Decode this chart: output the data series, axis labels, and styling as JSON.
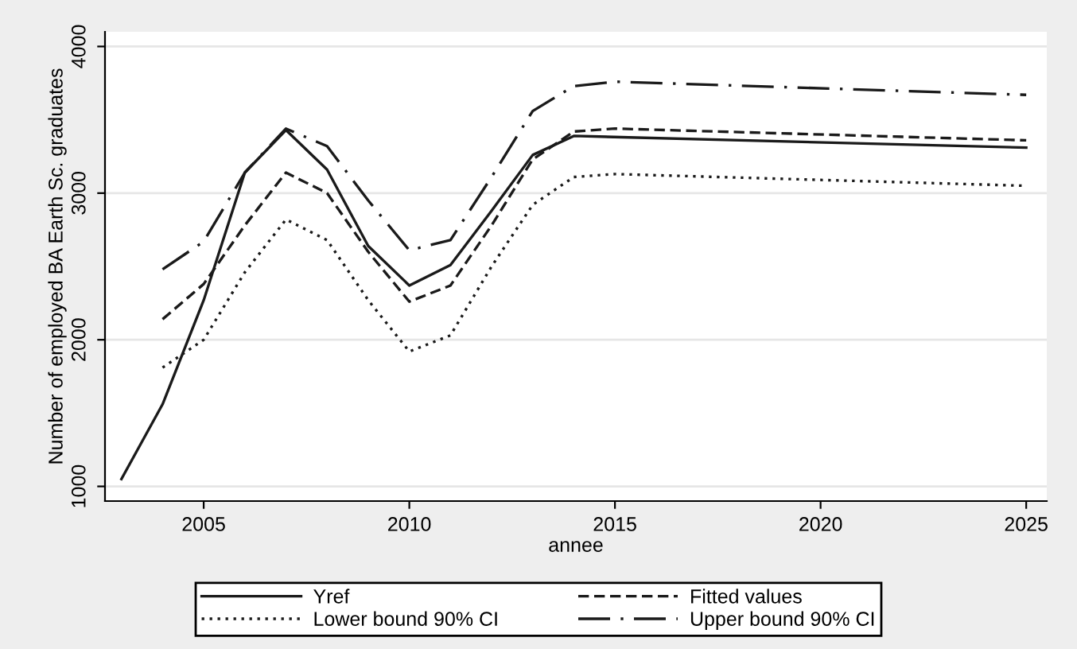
{
  "chart_data": {
    "type": "line",
    "xlabel": "annee",
    "ylabel": "Number of employed BA Earth Sc. graduates",
    "xlim": [
      2002.6,
      2025.5
    ],
    "ylim": [
      900,
      4100
    ],
    "xticks": [
      2005,
      2010,
      2015,
      2020,
      2025
    ],
    "yticks": [
      1000,
      2000,
      3000,
      4000
    ],
    "grid": "y",
    "legend": "bottom",
    "series": [
      {
        "name": "Yref",
        "color": "#1a1a1a",
        "line_style": "solid",
        "x": [
          2003,
          2004,
          2005,
          2006,
          2007,
          2008,
          2009,
          2010,
          2011,
          2012,
          2013,
          2014,
          2025
        ],
        "values": [
          1050,
          1560,
          2270,
          3140,
          3430,
          3160,
          2640,
          2370,
          2510,
          2880,
          3260,
          3390,
          3310
        ]
      },
      {
        "name": "Fitted values",
        "color": "#1a1a1a",
        "line_style": "dashed",
        "x": [
          2004,
          2005,
          2006,
          2007,
          2008,
          2009,
          2010,
          2011,
          2012,
          2013,
          2014,
          2015,
          2025
        ],
        "values": [
          2140,
          2380,
          2780,
          3140,
          3000,
          2600,
          2260,
          2370,
          2780,
          3230,
          3420,
          3440,
          3360
        ]
      },
      {
        "name": "Lower bound 90% CI",
        "color": "#1a1a1a",
        "line_style": "dotted",
        "x": [
          2004,
          2005,
          2006,
          2007,
          2008,
          2009,
          2010,
          2011,
          2012,
          2013,
          2014,
          2015,
          2025
        ],
        "values": [
          1810,
          2000,
          2460,
          2820,
          2680,
          2270,
          1920,
          2030,
          2500,
          2920,
          3110,
          3130,
          3050
        ]
      },
      {
        "name": "Upper bound 90% CI",
        "color": "#1a1a1a",
        "line_style": "dashdot",
        "x": [
          2004,
          2005,
          2006,
          2007,
          2008,
          2009,
          2010,
          2011,
          2012,
          2013,
          2014,
          2015,
          2025
        ],
        "values": [
          2480,
          2670,
          3140,
          3440,
          3320,
          2950,
          2610,
          2680,
          3110,
          3560,
          3730,
          3760,
          3670
        ]
      }
    ]
  }
}
